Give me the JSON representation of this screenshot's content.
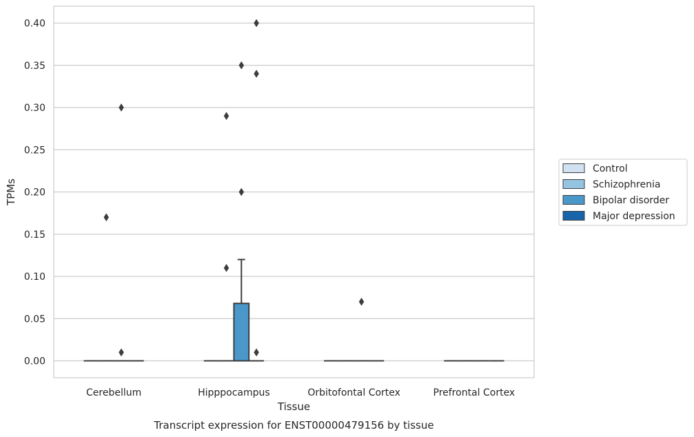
{
  "chart_data": {
    "type": "box",
    "xlabel": "Tissue",
    "ylabel": "TPMs",
    "caption": "Transcript expression for ENST00000479156 by tissue",
    "ylim": [
      -0.02,
      0.42
    ],
    "yticks": [
      0.0,
      0.05,
      0.1,
      0.15,
      0.2,
      0.25,
      0.3,
      0.35,
      0.4
    ],
    "ytick_labels": [
      "0.00",
      "0.05",
      "0.10",
      "0.15",
      "0.20",
      "0.25",
      "0.30",
      "0.35",
      "0.40"
    ],
    "grid": "horizontal",
    "legend_position": "right",
    "categories": [
      "Cerebellum",
      "Hipppocampus",
      "Orbitofontal Cortex",
      "Prefrontal Cortex"
    ],
    "series": [
      {
        "name": "Control",
        "color": "#d0e1f2",
        "boxes": [
          {
            "q1": 0,
            "median": 0,
            "q3": 0,
            "whisker_low": 0,
            "whisker_high": 0,
            "outliers": []
          },
          {
            "q1": 0,
            "median": 0,
            "q3": 0,
            "whisker_low": 0,
            "whisker_high": 0,
            "outliers": []
          },
          {
            "q1": 0,
            "median": 0,
            "q3": 0,
            "whisker_low": 0,
            "whisker_high": 0,
            "outliers": []
          },
          {
            "q1": 0,
            "median": 0,
            "q3": 0,
            "whisker_low": 0,
            "whisker_high": 0,
            "outliers": []
          }
        ]
      },
      {
        "name": "Schizophrenia",
        "color": "#94c4df",
        "boxes": [
          {
            "q1": 0,
            "median": 0,
            "q3": 0,
            "whisker_low": 0,
            "whisker_high": 0,
            "outliers": [
              0.17
            ]
          },
          {
            "q1": 0,
            "median": 0,
            "q3": 0,
            "whisker_low": 0,
            "whisker_high": 0,
            "outliers": [
              0.11,
              0.29
            ]
          },
          {
            "q1": 0,
            "median": 0,
            "q3": 0,
            "whisker_low": 0,
            "whisker_high": 0,
            "outliers": []
          },
          {
            "q1": 0,
            "median": 0,
            "q3": 0,
            "whisker_low": 0,
            "whisker_high": 0,
            "outliers": []
          }
        ]
      },
      {
        "name": "Bipolar disorder",
        "color": "#4a98c9",
        "boxes": [
          {
            "q1": 0,
            "median": 0,
            "q3": 0,
            "whisker_low": 0,
            "whisker_high": 0,
            "outliers": [
              0.01,
              0.3
            ]
          },
          {
            "q1": 0,
            "median": 0,
            "q3": 0.068,
            "whisker_low": 0,
            "whisker_high": 0.12,
            "outliers": [
              0.2,
              0.35
            ]
          },
          {
            "q1": 0,
            "median": 0,
            "q3": 0,
            "whisker_low": 0,
            "whisker_high": 0,
            "outliers": [
              0.07
            ]
          },
          {
            "q1": 0,
            "median": 0,
            "q3": 0,
            "whisker_low": 0,
            "whisker_high": 0,
            "outliers": []
          }
        ]
      },
      {
        "name": "Major depression",
        "color": "#1764ab",
        "boxes": [
          {
            "q1": 0,
            "median": 0,
            "q3": 0,
            "whisker_low": 0,
            "whisker_high": 0,
            "outliers": []
          },
          {
            "q1": 0,
            "median": 0,
            "q3": 0,
            "whisker_low": 0,
            "whisker_high": 0,
            "outliers": [
              0.01,
              0.34,
              0.4
            ]
          },
          {
            "q1": 0,
            "median": 0,
            "q3": 0,
            "whisker_low": 0,
            "whisker_high": 0,
            "outliers": []
          },
          {
            "q1": 0,
            "median": 0,
            "q3": 0,
            "whisker_low": 0,
            "whisker_high": 0,
            "outliers": []
          }
        ]
      }
    ]
  }
}
